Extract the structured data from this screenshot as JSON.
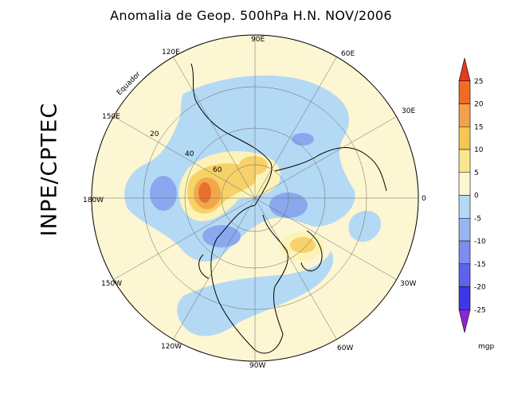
{
  "title": "Anomalia de Geop. 500hPa H.N. NOV/2006",
  "side_label": "INPE/CPTEC",
  "map": {
    "projection": "North polar stereographic",
    "longitude_labels": [
      "90E",
      "60E",
      "30E",
      "0",
      "30W",
      "60W",
      "90W",
      "120W",
      "150W",
      "180W",
      "150E",
      "120E"
    ],
    "latitude_labels": [
      "Equador",
      "20",
      "40",
      "60"
    ],
    "colors": {
      "pos_5_10": "#fdf3b8",
      "pos_10_15": "#f7d26a",
      "pos_15_20": "#f2a84a",
      "pos_20_25": "#e8702f",
      "neg_0_5": "#b4d9f5",
      "neg_5_10": "#8aa8ee",
      "neg_10_15": "#6f7ff0",
      "near_zero": "#fcf6d2",
      "coast": "#000000"
    }
  },
  "colorbar": {
    "labels": [
      "25",
      "20",
      "15",
      "10",
      "5",
      "0",
      "-5",
      "-10",
      "-15",
      "-20",
      "-25"
    ],
    "unit": "mgp",
    "colors": [
      "#e23b1e",
      "#ef6c22",
      "#f2a04a",
      "#f5c751",
      "#f9e68f",
      "#fcf6d2",
      "#b4d9f5",
      "#9ab4ef",
      "#7e8cf0",
      "#5f61ef",
      "#3e37e8",
      "#8a26d6"
    ]
  }
}
